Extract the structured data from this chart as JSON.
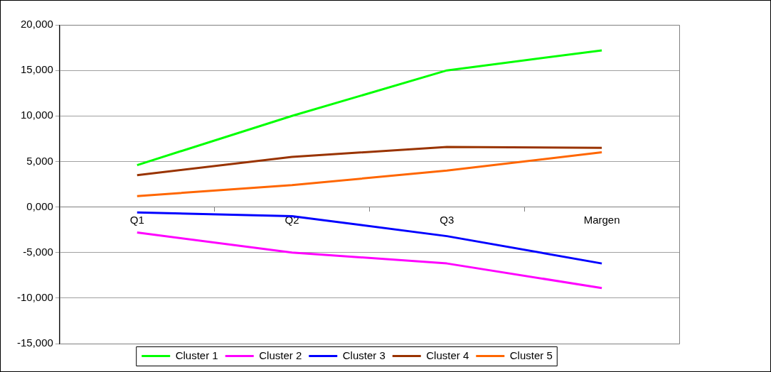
{
  "chart_data": {
    "type": "line",
    "categories": [
      "Q1",
      "Q2",
      "Q3",
      "Margen"
    ],
    "series": [
      {
        "name": "Cluster 1",
        "color": "#00ff00",
        "values": [
          4600,
          10000,
          15000,
          17200
        ]
      },
      {
        "name": "Cluster 2",
        "color": "#ff00ff",
        "values": [
          -2800,
          -5000,
          -6200,
          -8900
        ]
      },
      {
        "name": "Cluster 3",
        "color": "#0000ff",
        "values": [
          -600,
          -1000,
          -3200,
          -6200
        ]
      },
      {
        "name": "Cluster 4",
        "color": "#993300",
        "values": [
          3500,
          5500,
          6600,
          6500
        ]
      },
      {
        "name": "Cluster 5",
        "color": "#ff6600",
        "values": [
          1200,
          2400,
          4000,
          6000
        ]
      }
    ],
    "ylim": [
      -15000,
      20000
    ],
    "yticks": [
      {
        "value": -15000,
        "label": "-15,000"
      },
      {
        "value": -10000,
        "label": "-10,000"
      },
      {
        "value": -5000,
        "label": "-5,000"
      },
      {
        "value": 0,
        "label": "0,000"
      },
      {
        "value": 5000,
        "label": "5,000"
      },
      {
        "value": 10000,
        "label": "10,000"
      },
      {
        "value": 15000,
        "label": "15,000"
      },
      {
        "value": 20000,
        "label": "20,000"
      }
    ],
    "grid": "y",
    "legend": "bottom",
    "marker": "none",
    "line_style": "solid"
  }
}
